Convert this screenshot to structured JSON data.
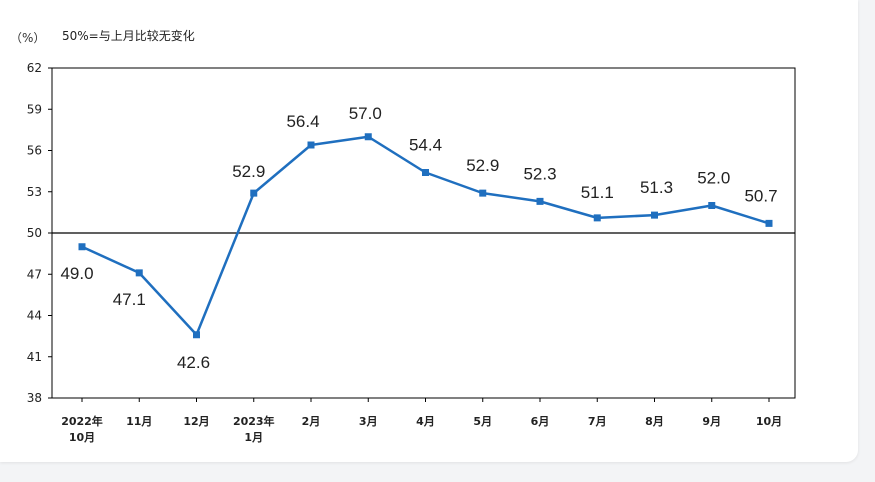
{
  "chart_data": {
    "type": "line",
    "unit_label": "（%）",
    "note": "50%=与上月比较无变化",
    "categories": [
      [
        "2022年",
        "10月"
      ],
      [
        "11月"
      ],
      [
        "12月"
      ],
      [
        "2023年",
        "1月"
      ],
      [
        "2月"
      ],
      [
        "3月"
      ],
      [
        "4月"
      ],
      [
        "5月"
      ],
      [
        "6月"
      ],
      [
        "7月"
      ],
      [
        "8月"
      ],
      [
        "9月"
      ],
      [
        "10月"
      ]
    ],
    "values": [
      49.0,
      47.1,
      42.6,
      52.9,
      56.4,
      57.0,
      54.4,
      52.9,
      52.3,
      51.1,
      51.3,
      52.0,
      50.7
    ],
    "value_labels": [
      "49.0",
      "47.1",
      "42.6",
      "52.9",
      "56.4",
      "57.0",
      "54.4",
      "52.9",
      "52.3",
      "51.1",
      "51.3",
      "52.0",
      "50.7"
    ],
    "yticks": [
      "38",
      "41",
      "44",
      "47",
      "50",
      "53",
      "56",
      "59",
      "62"
    ],
    "ylim": [
      38,
      62
    ],
    "reference_line": 50,
    "grid": false,
    "colors": {
      "line": "#1f6fbf",
      "marker": "#1f6fbf",
      "axis": "#000000"
    }
  }
}
